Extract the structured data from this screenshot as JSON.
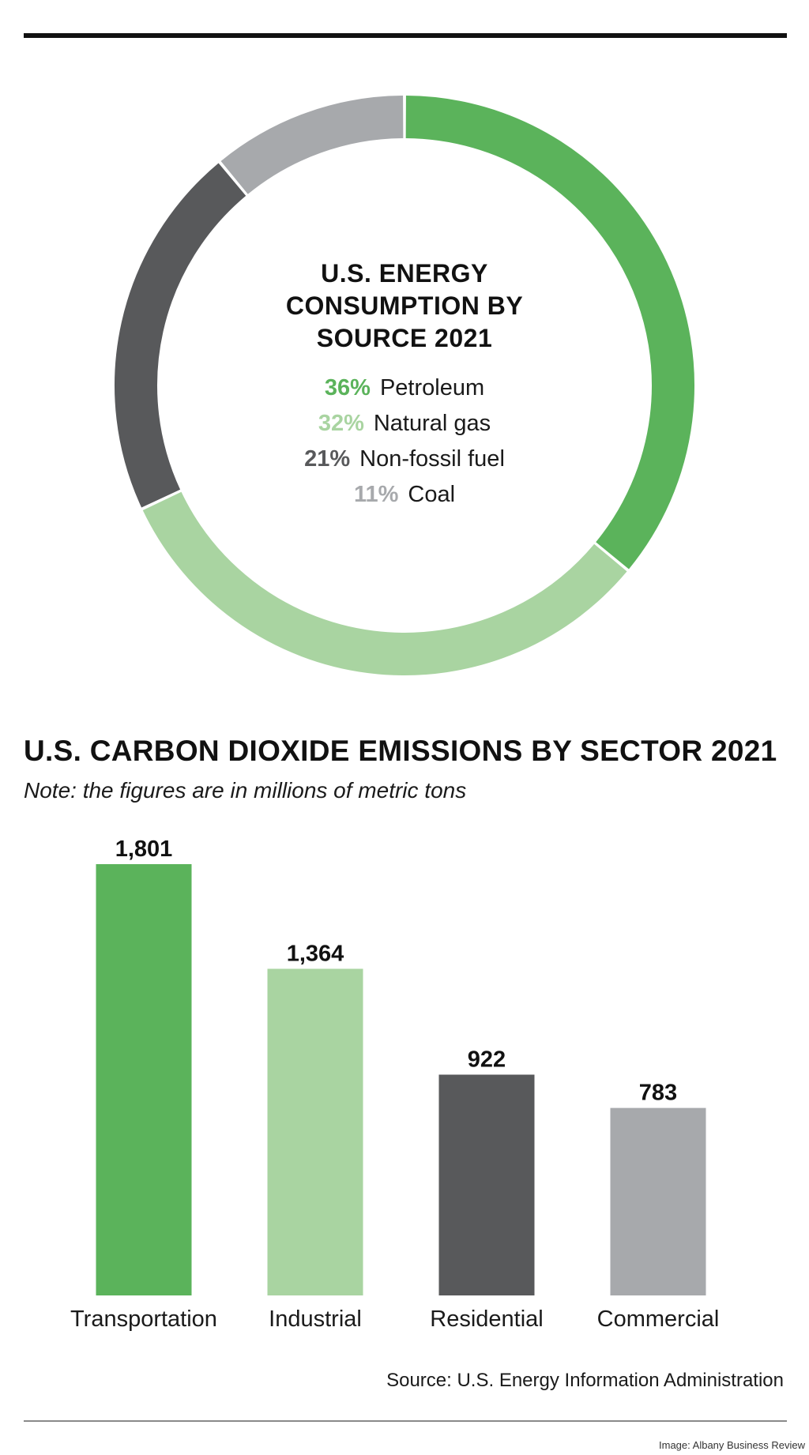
{
  "colors": {
    "green": "#5bb35b",
    "light_green": "#a9d4a1",
    "dark_gray": "#58595b",
    "light_gray": "#a7a9ac",
    "text": "#111111"
  },
  "chart_data": [
    {
      "type": "pie",
      "variant": "donut",
      "title": "U.S. ENERGY CONSUMPTION BY SOURCE 2021",
      "title_lines": [
        "U.S. ENERGY",
        "CONSUMPTION BY",
        "SOURCE 2021"
      ],
      "slices": [
        {
          "label": "Petroleum",
          "value": 36,
          "pct_label": "36%",
          "color": "#5bb35b"
        },
        {
          "label": "Natural gas",
          "value": 32,
          "pct_label": "32%",
          "color": "#a9d4a1"
        },
        {
          "label": "Non-fossil fuel",
          "value": 21,
          "pct_label": "21%",
          "color": "#58595b"
        },
        {
          "label": "Coal",
          "value": 11,
          "pct_label": "11%",
          "color": "#a7a9ac"
        }
      ]
    },
    {
      "type": "bar",
      "title": "U.S. CARBON DIOXIDE EMISSIONS BY SECTOR 2021",
      "note": "Note: the figures are in millions of metric tons",
      "categories": [
        "Transportation",
        "Industrial",
        "Residential",
        "Commercial"
      ],
      "values": [
        1801,
        1364,
        922,
        783
      ],
      "value_labels": [
        "1,801",
        "1,364",
        "922",
        "783"
      ],
      "colors": [
        "#5bb35b",
        "#a9d4a1",
        "#58595b",
        "#a7a9ac"
      ],
      "ylim": [
        0,
        1801
      ],
      "grid": false,
      "xlabel": "",
      "ylabel": ""
    }
  ],
  "source": "Source: U.S. Energy Information Administration",
  "credit": "Image: Albany Business Review"
}
